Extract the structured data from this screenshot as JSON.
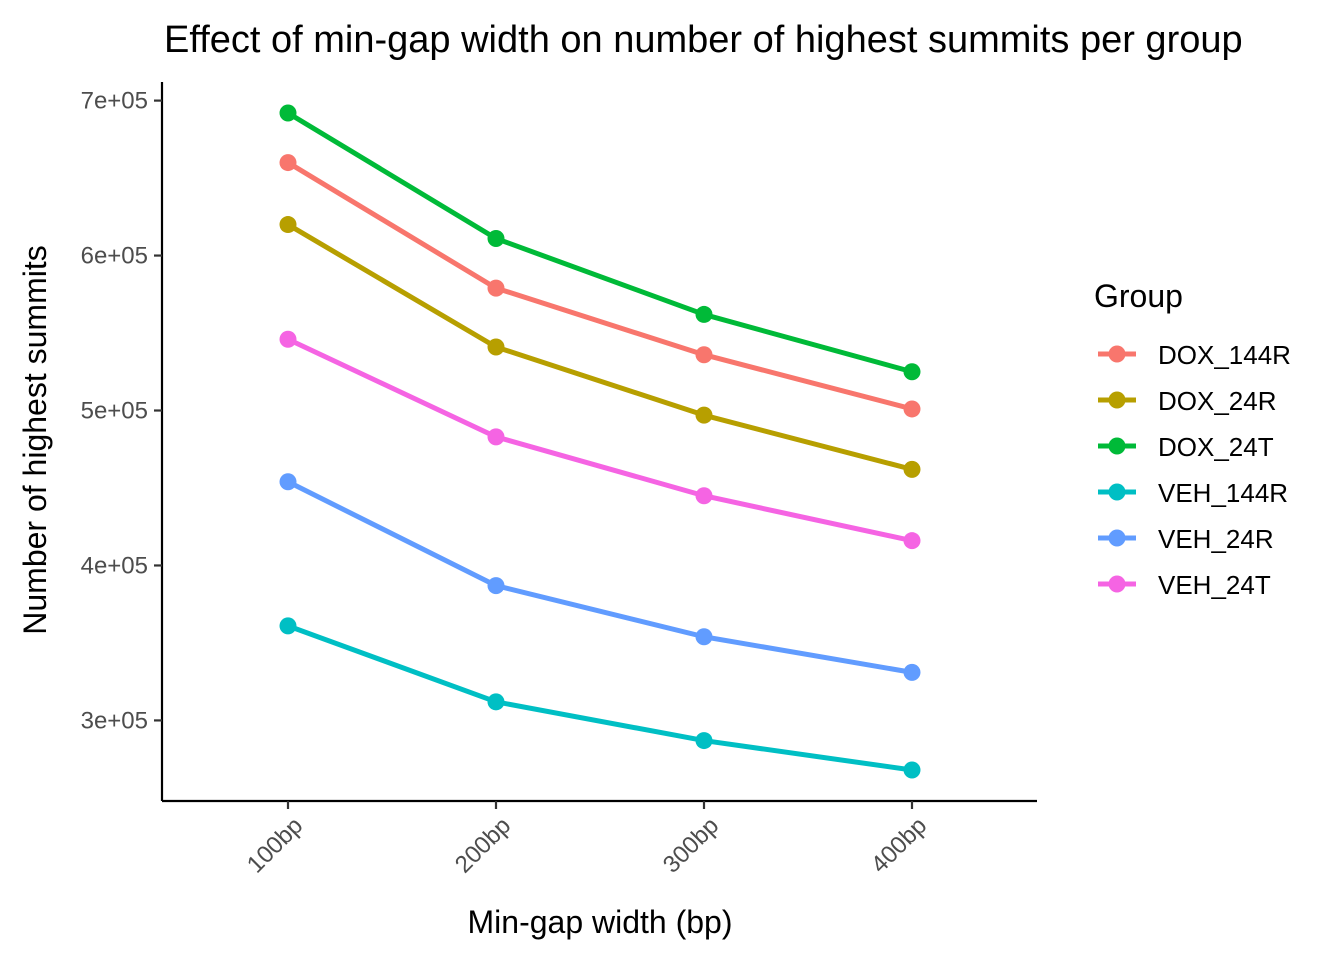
{
  "chart_data": {
    "type": "line",
    "title": "Effect of min-gap width on number of highest summits per group",
    "xlabel": "Min-gap width (bp)",
    "ylabel": "Number of highest summits",
    "categories": [
      "100bp",
      "200bp",
      "300bp",
      "400bp"
    ],
    "ylim": [
      248000,
      712000
    ],
    "yticks": [
      300000,
      400000,
      500000,
      600000,
      700000
    ],
    "ytick_labels": [
      "3e+05",
      "4e+05",
      "5e+05",
      "6e+05",
      "7e+05"
    ],
    "legend_title": "Group",
    "legend_position": "right",
    "grid": false,
    "series": [
      {
        "name": "DOX_144R",
        "color": "#F8766D",
        "values": [
          660000,
          579000,
          536000,
          501000
        ]
      },
      {
        "name": "DOX_24R",
        "color": "#B79F00",
        "values": [
          620000,
          541000,
          497000,
          462000
        ]
      },
      {
        "name": "DOX_24T",
        "color": "#00BA38",
        "values": [
          692000,
          611000,
          562000,
          525000
        ]
      },
      {
        "name": "VEH_144R",
        "color": "#00BFC4",
        "values": [
          361000,
          312000,
          287000,
          268000
        ]
      },
      {
        "name": "VEH_24R",
        "color": "#619CFF",
        "values": [
          454000,
          387000,
          354000,
          331000
        ]
      },
      {
        "name": "VEH_24T",
        "color": "#F564E3",
        "values": [
          546000,
          483000,
          445000,
          416000
        ]
      }
    ]
  }
}
